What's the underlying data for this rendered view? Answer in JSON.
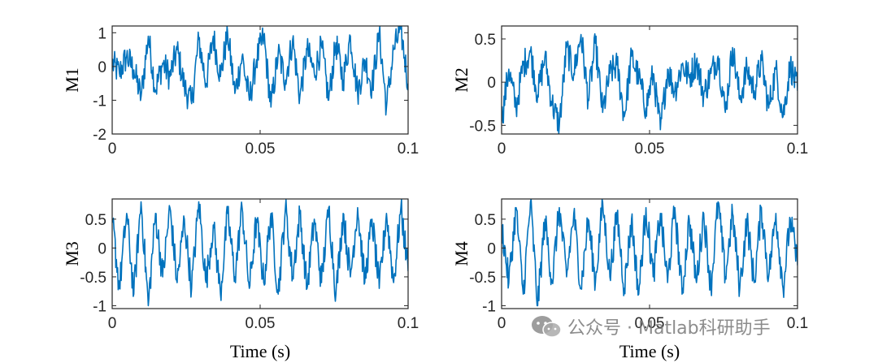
{
  "colors": {
    "line": "#0072BD",
    "axis": "#262626",
    "background": "#ffffff"
  },
  "watermark": {
    "icon": "wechat-icon",
    "text": "公众号 · Matlab科研助手"
  },
  "chart_data": [
    {
      "type": "line",
      "ylabel": "M1",
      "xlabel": "",
      "xlim": [
        0,
        0.1
      ],
      "ylim": [
        -2,
        1.2
      ],
      "xticks": [
        0,
        0.05,
        0.1
      ],
      "xtick_labels": [
        "0",
        "0.05",
        "0.1"
      ],
      "yticks": [
        -2,
        -1,
        0,
        1
      ],
      "ytick_labels": [
        "-2",
        "-1",
        "0",
        "1"
      ],
      "series": [
        {
          "x": [
            0,
            0.00244,
            0.00488,
            0.00732,
            0.00976,
            0.0122,
            0.01463,
            0.01707,
            0.01951,
            0.02195,
            0.02439,
            0.02683,
            0.02927,
            0.03171,
            0.03415,
            0.03659,
            0.03902,
            0.04146,
            0.0439,
            0.04634,
            0.04878,
            0.05122,
            0.05366,
            0.0561,
            0.05854,
            0.06098,
            0.06341,
            0.06585,
            0.06829,
            0.07073,
            0.07317,
            0.07561,
            0.07805,
            0.08049,
            0.08293,
            0.08537,
            0.0878,
            0.09024,
            0.09268,
            0.09512,
            0.09756,
            0.1
          ],
          "y": [
            0.1,
            -0.2,
            0.3,
            -0.1,
            -0.9,
            0.9,
            -0.7,
            0.1,
            -0.3,
            0.5,
            -0.6,
            -1.1,
            0.8,
            -0.5,
            0.9,
            -0.3,
            1.0,
            -0.8,
            0.3,
            -1.0,
            0.2,
            0.9,
            -1.2,
            0.4,
            -0.4,
            0.8,
            -0.9,
            0.5,
            -0.2,
            0.6,
            -1.0,
            0.7,
            -0.4,
            0.9,
            -0.8,
            0.2,
            -0.6,
            1.0,
            -1.2,
            0.5,
            1.1,
            -0.5
          ]
        }
      ]
    },
    {
      "type": "line",
      "ylabel": "M2",
      "xlabel": "",
      "xlim": [
        0,
        0.1
      ],
      "ylim": [
        -0.6,
        0.65
      ],
      "xticks": [
        0,
        0.05,
        0.1
      ],
      "xtick_labels": [
        "0",
        "0.05",
        "0.1"
      ],
      "yticks": [
        -0.5,
        0,
        0.5
      ],
      "ytick_labels": [
        "-0.5",
        "0",
        "0.5"
      ],
      "series": [
        {
          "x": [
            0,
            0.00244,
            0.00488,
            0.00732,
            0.00976,
            0.0122,
            0.01463,
            0.01707,
            0.01951,
            0.02195,
            0.02439,
            0.02683,
            0.02927,
            0.03171,
            0.03415,
            0.03659,
            0.03902,
            0.04146,
            0.0439,
            0.04634,
            0.04878,
            0.05122,
            0.05366,
            0.0561,
            0.05854,
            0.06098,
            0.06341,
            0.06585,
            0.06829,
            0.07073,
            0.07317,
            0.07561,
            0.07805,
            0.08049,
            0.08293,
            0.08537,
            0.0878,
            0.09024,
            0.09268,
            0.09512,
            0.09756,
            0.1
          ],
          "y": [
            -0.45,
            0.15,
            -0.3,
            0.2,
            0.35,
            -0.15,
            0.3,
            -0.25,
            -0.5,
            0.4,
            0.1,
            0.55,
            -0.2,
            0.45,
            -0.35,
            0.1,
            0.2,
            -0.4,
            0.3,
            0.05,
            -0.3,
            0.1,
            -0.55,
            0.15,
            -0.1,
            0.2,
            0.05,
            0.25,
            -0.15,
            0.1,
            0.3,
            -0.35,
            0.4,
            -0.2,
            0.15,
            -0.1,
            0.25,
            -0.3,
            0.15,
            -0.4,
            0.2,
            -0.1
          ]
        }
      ]
    },
    {
      "type": "line",
      "ylabel": "M3",
      "xlabel": "Time (s)",
      "xlim": [
        0,
        0.1
      ],
      "ylim": [
        -1.05,
        0.85
      ],
      "xticks": [
        0,
        0.05,
        0.1
      ],
      "xtick_labels": [
        "0",
        "0.05",
        "0.1"
      ],
      "yticks": [
        -1,
        -0.5,
        0,
        0.5
      ],
      "ytick_labels": [
        "-1",
        "-0.5",
        "0",
        "0.5"
      ],
      "series": [
        {
          "x": [
            0,
            0.00244,
            0.00488,
            0.00732,
            0.00976,
            0.0122,
            0.01463,
            0.01707,
            0.01951,
            0.02195,
            0.02439,
            0.02683,
            0.02927,
            0.03171,
            0.03415,
            0.03659,
            0.03902,
            0.04146,
            0.0439,
            0.04634,
            0.04878,
            0.05122,
            0.05366,
            0.0561,
            0.05854,
            0.06098,
            0.06341,
            0.06585,
            0.06829,
            0.07073,
            0.07317,
            0.07561,
            0.07805,
            0.08049,
            0.08293,
            0.08537,
            0.0878,
            0.09024,
            0.09268,
            0.09512,
            0.09756,
            0.1
          ],
          "y": [
            0.5,
            -0.7,
            0.6,
            -0.8,
            0.8,
            -1.0,
            0.6,
            -0.5,
            0.7,
            -0.6,
            0.5,
            -0.7,
            0.8,
            -0.6,
            0.4,
            -0.8,
            0.6,
            -0.5,
            0.7,
            -0.7,
            0.5,
            -0.6,
            0.6,
            -0.8,
            0.7,
            -0.5,
            0.6,
            -0.7,
            0.5,
            -0.6,
            0.7,
            -0.8,
            0.6,
            -0.5,
            0.7,
            -0.6,
            0.5,
            -0.7,
            0.6,
            -0.6,
            0.7,
            -0.4
          ]
        }
      ]
    },
    {
      "type": "line",
      "ylabel": "M4",
      "xlabel": "Time (s)",
      "xlim": [
        0,
        0.1
      ],
      "ylim": [
        -1.05,
        0.85
      ],
      "xticks": [
        0,
        0.05,
        0.1
      ],
      "xtick_labels": [
        "0",
        "0.05",
        "0.1"
      ],
      "yticks": [
        -1,
        -0.5,
        0,
        0.5
      ],
      "ytick_labels": [
        "-1",
        "-0.5",
        "0",
        "0.5"
      ],
      "series": [
        {
          "x": [
            0,
            0.00244,
            0.00488,
            0.00732,
            0.00976,
            0.0122,
            0.01463,
            0.01707,
            0.01951,
            0.02195,
            0.02439,
            0.02683,
            0.02927,
            0.03171,
            0.03415,
            0.03659,
            0.03902,
            0.04146,
            0.0439,
            0.04634,
            0.04878,
            0.05122,
            0.05366,
            0.0561,
            0.05854,
            0.06098,
            0.06341,
            0.06585,
            0.06829,
            0.07073,
            0.07317,
            0.07561,
            0.07805,
            0.08049,
            0.08293,
            0.08537,
            0.0878,
            0.09024,
            0.09268,
            0.09512,
            0.09756,
            0.1
          ],
          "y": [
            0.4,
            -0.6,
            0.7,
            -0.8,
            0.8,
            -1.0,
            0.5,
            -0.6,
            0.7,
            -0.5,
            0.6,
            -0.7,
            0.5,
            -0.6,
            0.8,
            -0.5,
            0.6,
            -0.7,
            0.5,
            -0.8,
            0.7,
            -0.5,
            0.6,
            -0.6,
            0.7,
            -0.8,
            0.5,
            -0.6,
            0.6,
            -0.7,
            0.8,
            -0.5,
            0.6,
            -0.7,
            0.5,
            -0.6,
            0.7,
            -0.5,
            0.6,
            -0.7,
            0.5,
            -0.3
          ]
        }
      ]
    }
  ]
}
